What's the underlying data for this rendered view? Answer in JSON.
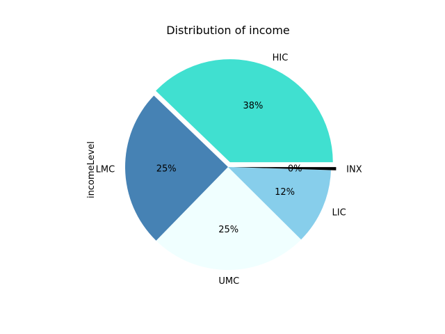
{
  "chart_data": {
    "type": "pie",
    "title": "Distribution of income",
    "ylabel": "incomeLevel",
    "autopct_format": "percent-integer",
    "start_angle_deg": 0,
    "direction": "counterclockwise",
    "slices": [
      {
        "label": "HIC",
        "value": 38,
        "color": "#40e0d0",
        "explode": 0.05
      },
      {
        "label": "LMC",
        "value": 25,
        "color": "#4682b4",
        "explode": 0
      },
      {
        "label": "UMC",
        "value": 25,
        "color": "#f0ffff",
        "explode": 0
      },
      {
        "label": "LIC",
        "value": 12,
        "color": "#87ceeb",
        "explode": 0
      },
      {
        "label": "INX",
        "value": 0.5,
        "color": "#000000",
        "explode": 0.05
      }
    ]
  }
}
